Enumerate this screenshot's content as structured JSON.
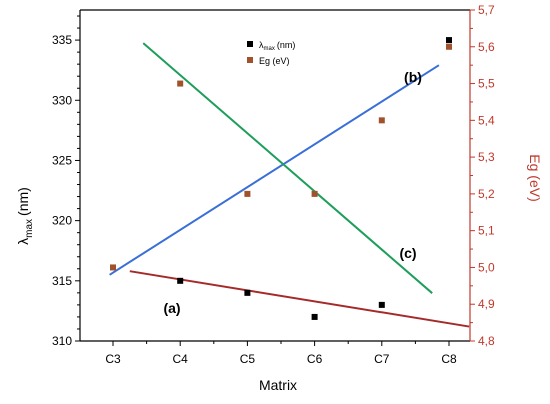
{
  "chart_data": {
    "type": "scatter",
    "xlabel": "Matrix",
    "ylabel_left": "λ",
    "ylabel_left_sub": "max",
    "ylabel_left_unit": "(nm)",
    "ylabel_right": "Eg (eV)",
    "categories": [
      "C3",
      "C4",
      "C5",
      "C6",
      "C7",
      "C8"
    ],
    "y_left_lim": [
      310,
      337.5
    ],
    "y_left_ticks": [
      310,
      315,
      320,
      325,
      330,
      335
    ],
    "y_right_lim": [
      4.8,
      5.7
    ],
    "y_right_ticks": [
      "4,8",
      "4,9",
      "5,0",
      "5,1",
      "5,2",
      "5,3",
      "5,4",
      "5,5",
      "5,6",
      "5,7"
    ],
    "right_axis_color": "#c0392b",
    "legend": {
      "position": "top-right",
      "entries": [
        {
          "label": "λ",
          "sub": "max",
          "unit": "(nm)",
          "color": "#000000"
        },
        {
          "label": "Eg (eV)",
          "color": "#a0522d"
        }
      ]
    },
    "series": [
      {
        "name": "λmax (nm)",
        "axis": "left",
        "color": "#000000",
        "values": [
          null,
          315,
          314,
          312,
          313,
          335
        ]
      },
      {
        "name": "Eg (eV)",
        "axis": "right",
        "color": "#a0522d",
        "values": [
          5.0,
          5.5,
          5.2,
          5.2,
          5.4,
          5.6
        ]
      }
    ],
    "fit_lines": [
      {
        "label": "(a)",
        "color": "#a52a2a",
        "axis": "left",
        "x": [
          3.25,
          8.3
        ],
        "y": [
          315.8,
          311.2
        ]
      },
      {
        "label": "(b)",
        "color": "#3a6fd8",
        "axis": "right",
        "x": [
          2.95,
          7.85
        ],
        "y": [
          4.98,
          5.55
        ]
      },
      {
        "label": "(c)",
        "color": "#1e9e5a",
        "axis": "right",
        "x": [
          3.45,
          7.75
        ],
        "y": [
          5.61,
          4.93
        ]
      }
    ],
    "annotations": [
      "(a)",
      "(b)",
      "(c)"
    ]
  }
}
